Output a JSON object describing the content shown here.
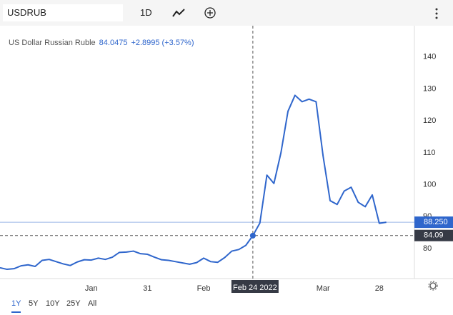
{
  "toolbar": {
    "symbol": "USDRUB",
    "interval": "1D"
  },
  "chart_data": {
    "type": "line",
    "title": "US Dollar Russian Ruble",
    "price": "84.0475",
    "change": "+2.8995 (+3.57%)",
    "categories": [
      null,
      null,
      null,
      null,
      null,
      null,
      null,
      null,
      null,
      null,
      null,
      null,
      null,
      "Jan",
      null,
      null,
      null,
      null,
      null,
      null,
      null,
      "31",
      null,
      null,
      null,
      null,
      null,
      null,
      null,
      "Feb",
      null,
      null,
      null,
      null,
      null,
      null,
      "Feb 24 2022",
      null,
      null,
      null,
      null,
      null,
      null,
      null,
      null,
      null,
      "Mar",
      null,
      null,
      null,
      null,
      null,
      null,
      null,
      "28",
      null
    ],
    "series": [
      {
        "name": "USDRUB",
        "color": "#2f66cc",
        "values": [
          74.0,
          73.5,
          73.7,
          74.6,
          74.9,
          74.4,
          76.3,
          76.6,
          75.9,
          75.2,
          74.7,
          75.8,
          76.5,
          76.4,
          77.0,
          76.6,
          77.3,
          78.8,
          78.9,
          79.2,
          78.4,
          78.2,
          77.3,
          76.5,
          76.3,
          75.9,
          75.5,
          75.1,
          75.6,
          77.0,
          75.9,
          75.7,
          77.2,
          79.2,
          79.7,
          81.0,
          84.05,
          88.0,
          103.0,
          100.4,
          110.0,
          123.0,
          128.0,
          126.0,
          126.8,
          126.0,
          109.0,
          95.0,
          93.8,
          98.0,
          99.2,
          94.5,
          93.1,
          96.8,
          87.9,
          88.25
        ]
      }
    ],
    "last_value_label": "88.250",
    "crosshair": {
      "index": 36,
      "y": 84.09
    },
    "ylim": [
      70.6,
      149.8
    ],
    "yticks": [
      80,
      90,
      100,
      110,
      120,
      130,
      140
    ],
    "grid": false
  },
  "ranges": [
    "1Y",
    "5Y",
    "10Y",
    "25Y",
    "All"
  ],
  "active_range": 0
}
